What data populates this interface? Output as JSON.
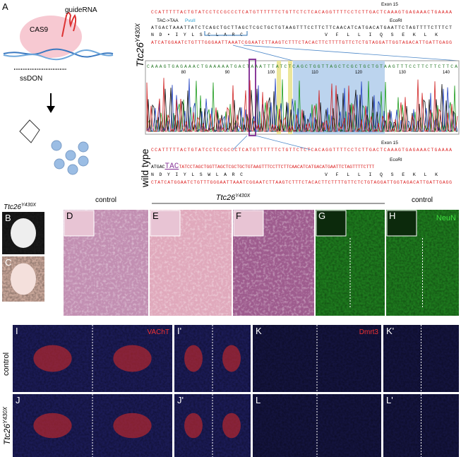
{
  "panel_a": {
    "label": "A",
    "guide": "guideRNA",
    "cas9": "CAS9",
    "ssdon": "ssDON"
  },
  "mutant": {
    "gene": "Ttc26",
    "allele": "Y430X"
  },
  "mutant_sequence": {
    "exon": "Exon 15",
    "codon_change": "TAC->TAA",
    "site1": "PvuII",
    "site2": "EcoRI",
    "line1": "CCATTTTTACTGTATCCTCCGCCCTCATGTTTTTTCTGTTCTCTCACAGGTTTTCCTCTTGACTCAAAGTGAGAAACTGAAAA",
    "line2": "ATGACTAAATTATCTCAGCTGCTTAGCTCGCTGCTGTAAGTTTCCTTCTTCAACATCATGACATGAATTCTAGTTTTCTTTCT",
    "amino1": "N D • I Y L S C L A R C",
    "amino2": "V F L L I Q S E K L K",
    "line3": "ATCATGGAATCTGTTTGGGAATTAAATCGGAATCTTAAGTCTTTCTACACTTCTTTTGTTCTCTGTAGGATTGGTAGACATTGATTGAGG"
  },
  "chromatogram": {
    "bases": "CAAAGTGAGAAACTGAAAAATGACTAAATTTATCTCAGCTGGTTAGCTCGCTGCTGTAAGTTTCCTTCTTCTTCA",
    "positions": [
      "80",
      "90",
      "100",
      "110",
      "120",
      "130",
      "140"
    ]
  },
  "wildtype": {
    "label": "wild type",
    "exon": "Exon 15",
    "site": "EcoRI",
    "line1": "CCATTTTTACTGTATCCTCCGCCCTCATGTTTTTTCTGTTCTCTCACAGGTTTTCCTCTTGACTCAAAGTGAGAAACTGAAAA",
    "line2_start": "ATGAC",
    "codon": "TAC",
    "line2_end": "TATCCTAGCTGGTTAGCTCGCTGCTGTAAGTTTCCTTCTTCAACATCATGACATGAATTCTAGTTTTCTTT",
    "amino1": "N D Y I Y L S W L A R C",
    "amino2": "V F L L I Q S E K L K",
    "line3": "CTATCATGGAATCTGTTTGGGAATTAAATCGGAATCTTAAGTCTTTCTACACTTCTTTTGTTCTCTGTAGGATTGGTAGACATTGATTGAGG"
  },
  "headers": {
    "control": "control",
    "control2": "control",
    "row_control": "control"
  },
  "panels": {
    "B": "B",
    "C": "C",
    "D": "D",
    "E": "E",
    "F": "F",
    "G": "G",
    "H": "H",
    "I": "I",
    "I2": "I'",
    "J": "J",
    "J2": "J'",
    "K": "K",
    "K2": "K'",
    "L": "L",
    "L2": "L'"
  },
  "stains": {
    "neun": "NeuN",
    "vacht": "VAChT",
    "dmrt3": "Dmrt3"
  }
}
